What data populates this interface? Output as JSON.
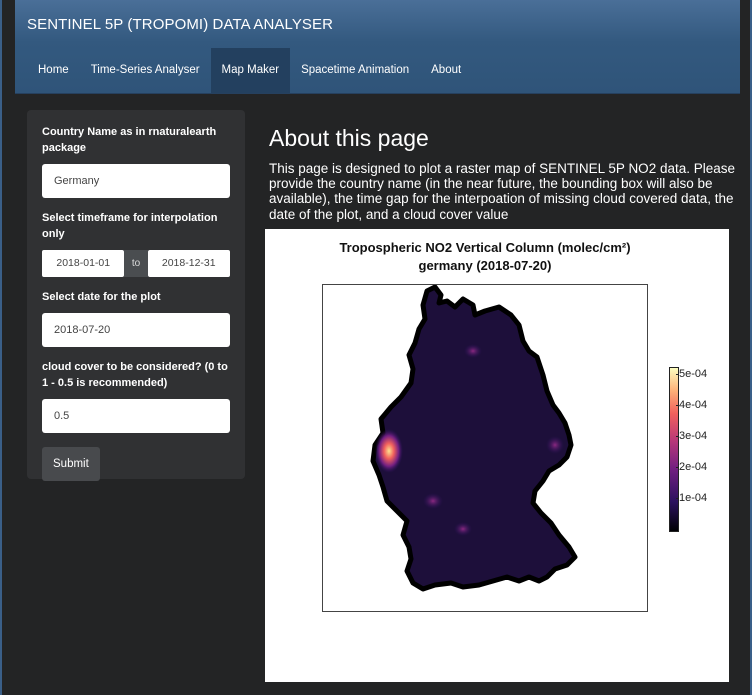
{
  "app": {
    "title": "SENTINEL 5P (TROPOMI) DATA ANALYSER"
  },
  "nav": {
    "tabs": [
      {
        "label": "Home"
      },
      {
        "label": "Time-Series Analyser"
      },
      {
        "label": "Map Maker"
      },
      {
        "label": "Spacetime Animation"
      },
      {
        "label": "About"
      }
    ],
    "active_tab": "Map Maker"
  },
  "sidebar": {
    "country_label": "Country Name as in rnaturalearth package",
    "country_value": "Germany",
    "timeframe_label": "Select timeframe for interpolation only",
    "date_start": "2018-01-01",
    "date_sep": "to",
    "date_end": "2018-12-31",
    "plot_date_label": "Select date for the plot",
    "plot_date_value": "2018-07-20",
    "cloud_label": "cloud cover to be considered? (0 to 1 - 0.5 is recommended)",
    "cloud_value": "0.5",
    "submit_label": "Submit"
  },
  "main": {
    "title": "About this page",
    "description": "This page is designed to plot a raster map of SENTINEL 5P NO2 data. Please provide the country name (in the near future, the bounding box will also be available), the time gap for the interpoation of missing cloud covered data, the date of the plot, and a cloud cover value"
  },
  "plot": {
    "title_line1": "Tropospheric NO2 Vertical Column (molec/cm²)",
    "title_line2": "germany (2018-07-20)",
    "legend_ticks": [
      "5e-04",
      "4e-04",
      "3e-04",
      "2e-04",
      "1e-04"
    ],
    "colormap": "magma"
  },
  "colors": {
    "navbar": "#2f5479",
    "active_tab": "#23405f",
    "background": "#232425",
    "panel": "#303133"
  }
}
